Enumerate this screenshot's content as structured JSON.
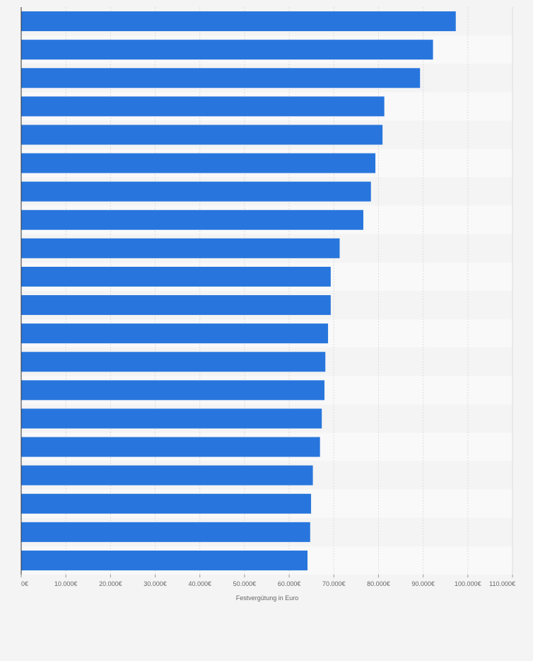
{
  "chart_data": {
    "type": "bar",
    "orientation": "horizontal",
    "categories": [
      "",
      "",
      "",
      "",
      "",
      "",
      "",
      "",
      "",
      "",
      "",
      "",
      "",
      "",
      "",
      "",
      "",
      "",
      "",
      ""
    ],
    "values": [
      97300,
      92200,
      89300,
      81300,
      80900,
      79300,
      78300,
      76600,
      71300,
      69300,
      69300,
      68700,
      68100,
      67900,
      67300,
      66900,
      65300,
      64900,
      64700,
      64100
    ],
    "xlabel": "Festvergütung in Euro",
    "ylabel": "",
    "xlim": [
      0,
      110000
    ],
    "x_ticks": [
      0,
      10000,
      20000,
      30000,
      40000,
      50000,
      60000,
      70000,
      80000,
      90000,
      100000,
      110000
    ],
    "x_tick_labels": [
      "0€",
      "10.000€",
      "20.000€",
      "30.000€",
      "40.000€",
      "50.000€",
      "60.000€",
      "70.000€",
      "80.000€",
      "90.000€",
      "100.000€",
      "110.000€"
    ],
    "grid": true,
    "bar_color": "#2876dd",
    "band_colors": [
      "#f4f4f4",
      "#f9f9f9"
    ],
    "background": "#f4f4f4"
  }
}
